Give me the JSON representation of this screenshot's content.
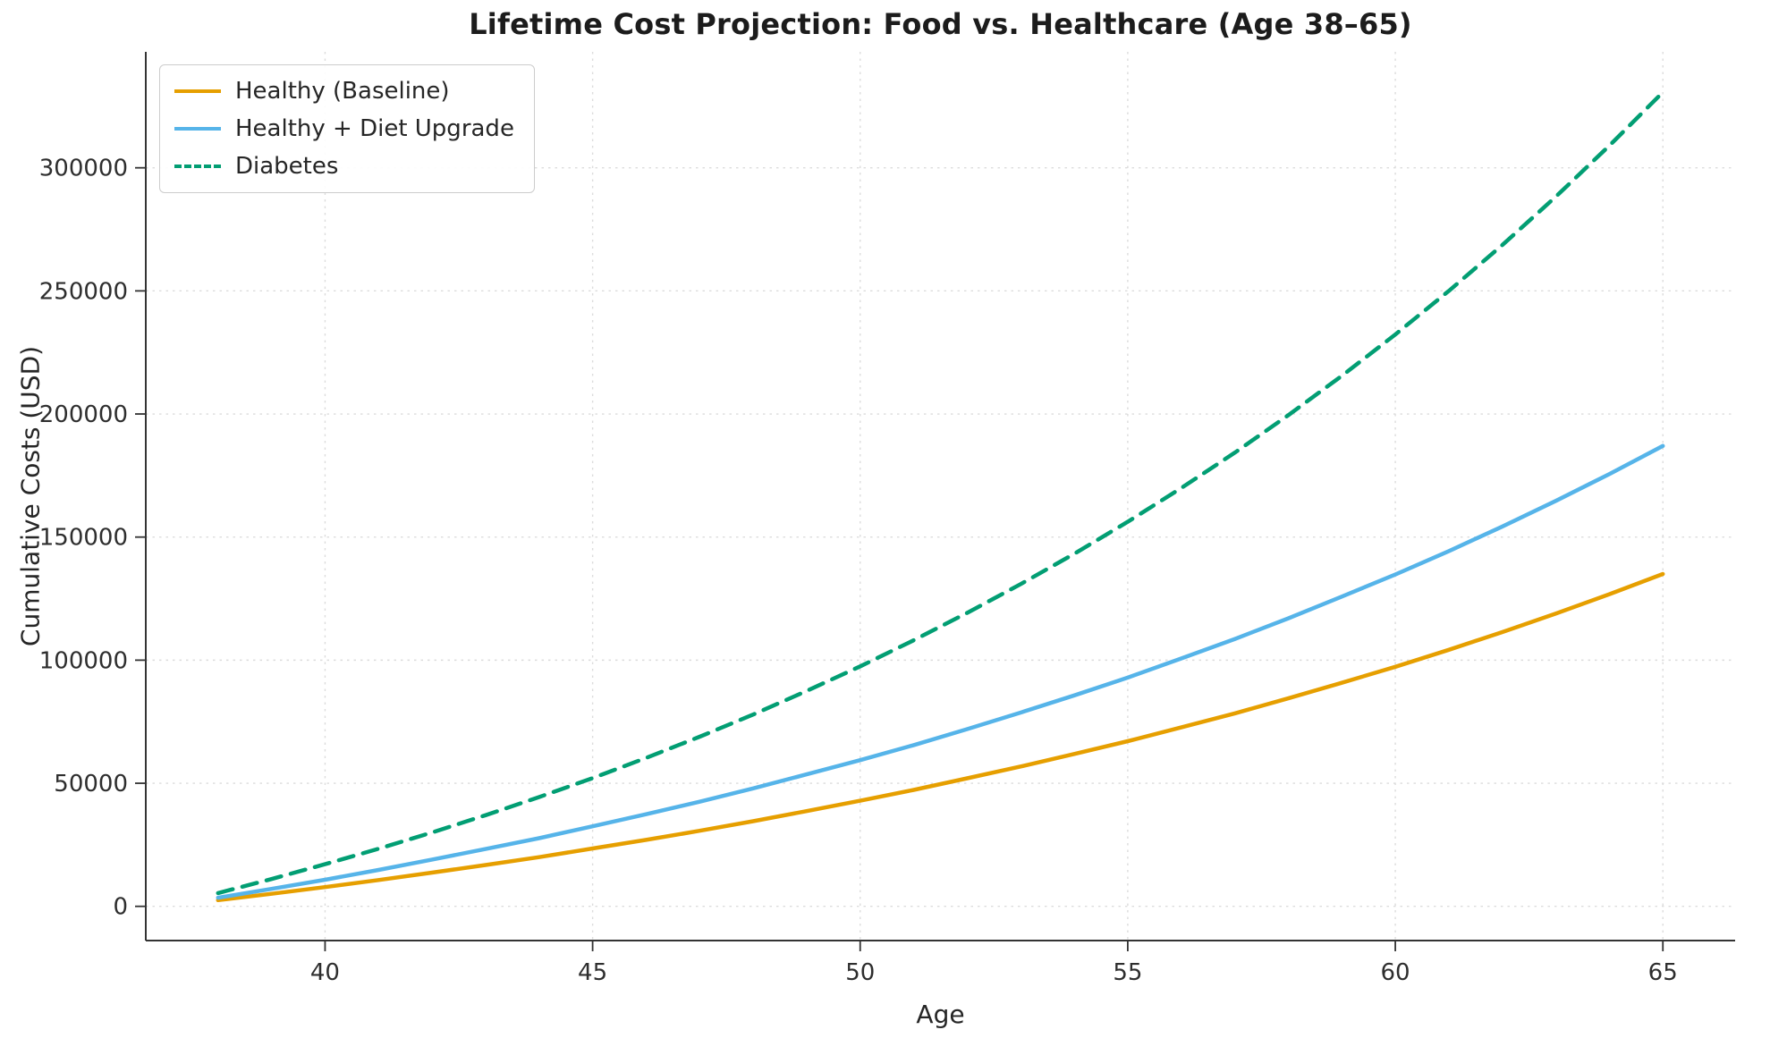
{
  "chart_data": {
    "type": "line",
    "title": "Lifetime Cost Projection: Food vs. Healthcare (Age 38–65)",
    "xlabel": "Age",
    "ylabel": "Cumulative Costs (USD)",
    "x_range": [
      36.65,
      66.35
    ],
    "y_range": [
      -13900,
      347100
    ],
    "x_ticks": [
      40,
      45,
      50,
      55,
      60,
      65
    ],
    "y_ticks": [
      0,
      50000,
      100000,
      150000,
      200000,
      250000,
      300000
    ],
    "grid": true,
    "legend_position": "upper left",
    "x": [
      38,
      39,
      40,
      41,
      42,
      43,
      44,
      45,
      46,
      47,
      48,
      49,
      50,
      51,
      52,
      53,
      54,
      55,
      56,
      57,
      58,
      59,
      60,
      61,
      62,
      63,
      64,
      65
    ],
    "series": [
      {
        "name": "Healthy (Baseline)",
        "color": "#E69F00",
        "style": "solid",
        "values": [
          2500,
          5100,
          7800,
          10700,
          13700,
          16800,
          20000,
          23500,
          27000,
          30700,
          34600,
          38700,
          42900,
          47300,
          52000,
          56800,
          61900,
          67100,
          72700,
          78400,
          84500,
          90800,
          97300,
          104200,
          111400,
          118900,
          126800,
          135000
        ]
      },
      {
        "name": "Healthy + Diet Upgrade",
        "color": "#56B4E9",
        "style": "solid",
        "values": [
          3500,
          7100,
          10800,
          14800,
          19000,
          23300,
          27700,
          32500,
          37400,
          42500,
          47900,
          53600,
          59400,
          65500,
          72000,
          78700,
          85700,
          92900,
          100700,
          108600,
          117000,
          125800,
          134800,
          144300,
          154300,
          164700,
          175600,
          187000
        ]
      },
      {
        "name": "Diabetes",
        "color": "#029E73",
        "style": "dashed",
        "values": [
          5400,
          11100,
          17100,
          23400,
          30000,
          37000,
          44400,
          52100,
          60300,
          68900,
          77900,
          87500,
          97500,
          108100,
          119200,
          130900,
          143200,
          156200,
          169900,
          184300,
          199500,
          215500,
          232300,
          250000,
          268600,
          288300,
          309000,
          330700
        ]
      }
    ],
    "style": {
      "grid_color": "#dcdcdc",
      "spine_color": "#333333",
      "tick_label_color": "#2e2e2e",
      "line_width": 4.5
    }
  }
}
